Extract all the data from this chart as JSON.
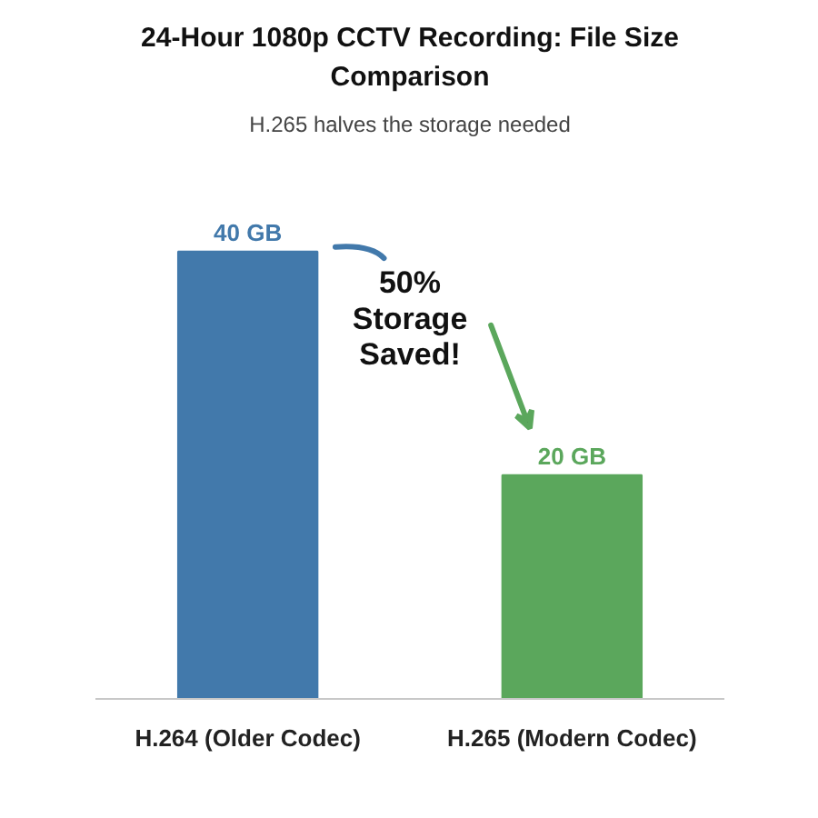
{
  "chart_data": {
    "type": "bar",
    "title": "24-Hour 1080p CCTV Recording: File Size Comparison",
    "subtitle": "H.265 halves the storage needed",
    "categories": [
      "H.264 (Older Codec)",
      "H.265 (Modern Codec)"
    ],
    "values": [
      40,
      20
    ],
    "colors": [
      "#4279ab",
      "#5ba75c"
    ],
    "value_labels": [
      "40 GB",
      "20 GB"
    ],
    "annotations": [
      "50% Storage Saved!"
    ],
    "tick_labels": "x"
  }
}
